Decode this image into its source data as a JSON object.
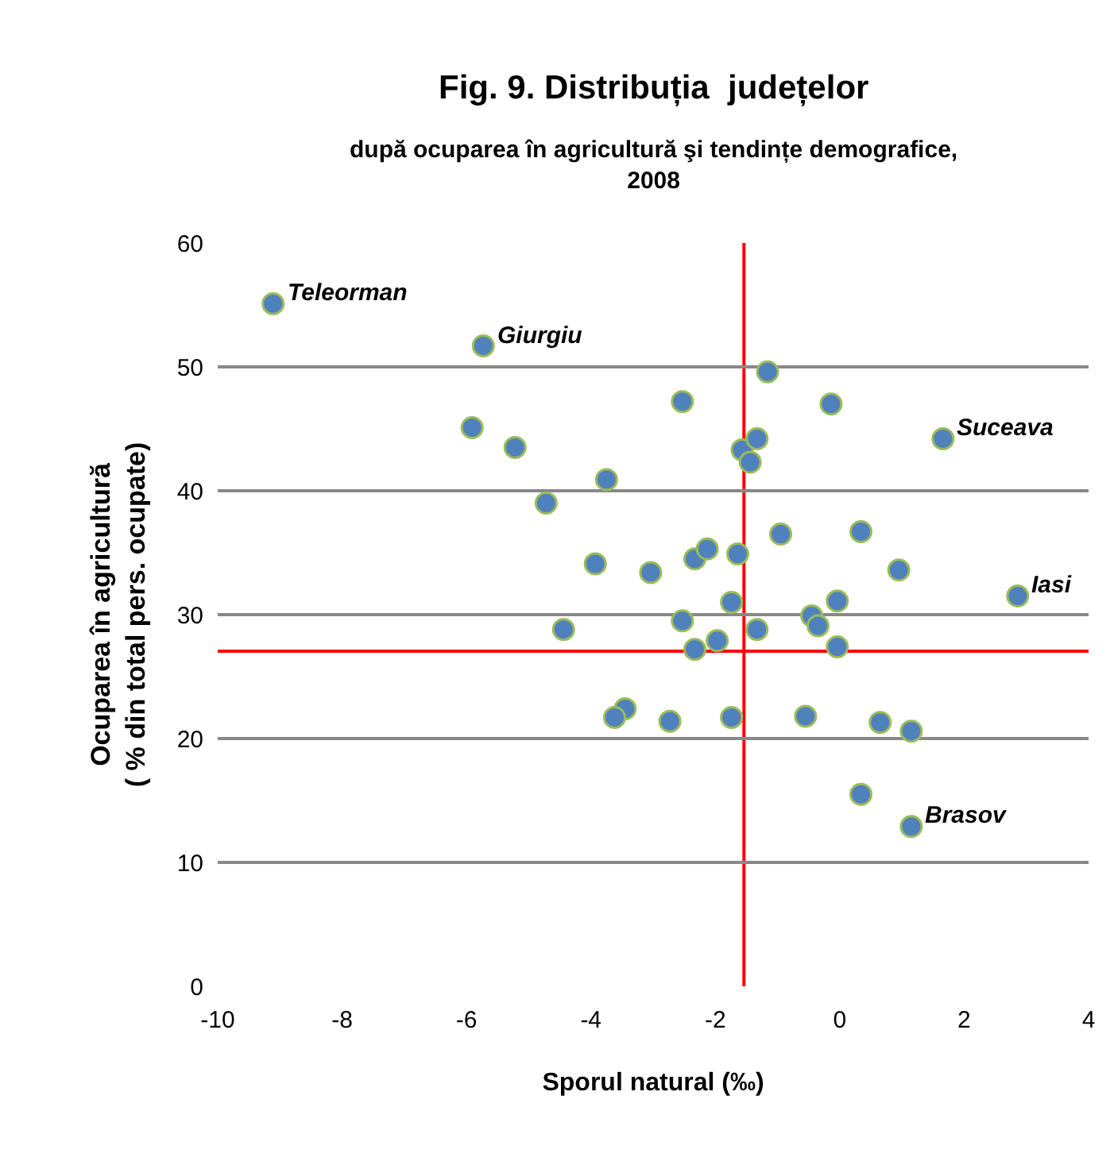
{
  "chart_data": {
    "type": "scatter",
    "title": "Fig. 9. Distribuția  județelor",
    "subtitle": "după ocuparea în agricultură şi tendințe demografice,\n2008",
    "xlabel": "Sporul natural (‰)",
    "ylabel": "Ocuparea în agricultură\n( % din total pers. ocupate)",
    "x": [
      -9.11,
      -5.73,
      -5.91,
      -5.22,
      -3.75,
      -4.72,
      -3.93,
      -3.04,
      -2.33,
      -2.13,
      -1.64,
      -2.53,
      -1.16,
      -0.14,
      1.66,
      -1.57,
      -1.33,
      -1.44,
      -0.95,
      0.34,
      0.95,
      2.86,
      -1.74,
      -2.53,
      -2.33,
      -1.97,
      -1.33,
      -0.45,
      -0.35,
      -0.04,
      -0.04,
      -4.44,
      -3.45,
      -3.62,
      -2.73,
      -1.74,
      -0.55,
      0.65,
      1.15,
      0.34,
      1.15
    ],
    "series": [
      {
        "color": "#4f81bd",
        "values": [
          55.1,
          51.7,
          45.1,
          43.5,
          40.9,
          39.0,
          34.1,
          33.4,
          34.5,
          35.3,
          34.9,
          47.2,
          49.6,
          47.0,
          44.2,
          43.3,
          44.2,
          42.3,
          36.5,
          36.7,
          33.6,
          31.5,
          31.0,
          29.5,
          27.2,
          27.9,
          28.8,
          29.9,
          29.1,
          31.1,
          27.4,
          28.8,
          22.4,
          21.7,
          21.4,
          21.7,
          21.8,
          21.3,
          20.6,
          15.5,
          12.9
        ]
      }
    ],
    "annotations": [
      {
        "text": "Teleorman",
        "x": -9.11,
        "y": 55.1
      },
      {
        "text": "Giurgiu",
        "x": -5.73,
        "y": 51.7
      },
      {
        "text": "Suceava",
        "x": 1.66,
        "y": 44.2
      },
      {
        "text": "Iasi",
        "x": 2.86,
        "y": 31.5
      },
      {
        "text": "Brasov",
        "x": 1.15,
        "y": 12.9
      }
    ],
    "ref_lines": [
      {
        "axis": "x",
        "value": -1.54,
        "color": "#ff0000"
      },
      {
        "axis": "y",
        "value": 27.05,
        "color": "#ff0000"
      }
    ],
    "xlim": [
      -10,
      4
    ],
    "xticks": [
      -10,
      -8,
      -6,
      -4,
      -2,
      0,
      2,
      4
    ],
    "ylim": [
      0,
      60
    ],
    "yticks": [
      0,
      10,
      20,
      30,
      40,
      50,
      60
    ],
    "grid": "y",
    "marker": "circle"
  }
}
